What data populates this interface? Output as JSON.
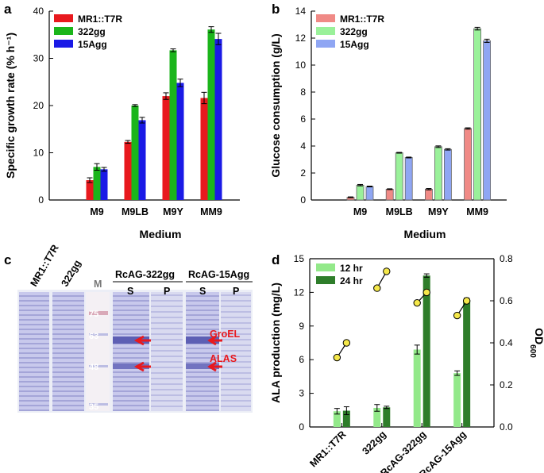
{
  "panels": {
    "a": "a",
    "b": "b",
    "c": "c",
    "d": "d"
  },
  "chart_data": [
    {
      "id": "a",
      "type": "bar",
      "ylabel": "Specific growth rate (% h⁻¹)",
      "xlabel": "Medium",
      "ylim": [
        0,
        40
      ],
      "yticks": [
        0,
        10,
        20,
        30,
        40
      ],
      "categories": [
        "M9",
        "M9LB",
        "M9Y",
        "MM9"
      ],
      "series": [
        {
          "name": "MR1::T7R",
          "color": "#e8191e",
          "values": [
            4.2,
            12.3,
            22.0,
            21.6
          ],
          "errors": [
            0.5,
            0.3,
            0.7,
            1.2
          ]
        },
        {
          "name": "322gg",
          "color": "#1bb51b",
          "values": [
            7.0,
            20.0,
            31.7,
            36.1
          ],
          "errors": [
            0.7,
            0.2,
            0.3,
            0.6
          ]
        },
        {
          "name": "15Agg",
          "color": "#1a1ae6",
          "values": [
            6.5,
            16.9,
            24.8,
            34.1
          ],
          "errors": [
            0.4,
            0.6,
            0.8,
            1.2
          ]
        }
      ]
    },
    {
      "id": "b",
      "type": "bar",
      "ylabel": "Glucose consumption (g/L)",
      "xlabel": "Medium",
      "ylim": [
        0,
        14
      ],
      "yticks": [
        0,
        2,
        4,
        6,
        8,
        10,
        12,
        14
      ],
      "categories": [
        "M9",
        "M9LB",
        "M9Y",
        "MM9"
      ],
      "series": [
        {
          "name": "MR1::T7R",
          "color": "#f08a86",
          "values": [
            0.2,
            0.8,
            0.8,
            5.3
          ],
          "errors": [
            0.03,
            0.03,
            0.05,
            0.05
          ]
        },
        {
          "name": "322gg",
          "color": "#9af19a",
          "values": [
            1.1,
            3.5,
            3.95,
            12.7
          ],
          "errors": [
            0.05,
            0.03,
            0.06,
            0.1
          ]
        },
        {
          "name": "15Agg",
          "color": "#8fa6f3",
          "values": [
            1.0,
            3.15,
            3.75,
            11.8
          ],
          "errors": [
            0.03,
            0.03,
            0.05,
            0.12
          ]
        }
      ]
    },
    {
      "id": "d",
      "type": "bar",
      "ylabel": "ALA production (mg/L)",
      "y2label": "OD",
      "y2label_sub": "600",
      "ylim": [
        0,
        15
      ],
      "yticks": [
        0,
        3,
        6,
        9,
        12,
        15
      ],
      "y2lim": [
        0.0,
        0.8
      ],
      "y2ticks": [
        "0.0",
        "0.2",
        "0.4",
        "0.6",
        "0.8"
      ],
      "categories": [
        "MR1::T7R",
        "322gg",
        "RcAG-322gg",
        "RcAG-15Agg"
      ],
      "series": [
        {
          "name": "12 hr",
          "color": "#93e98a",
          "values": [
            1.4,
            1.7,
            6.9,
            4.8
          ],
          "errors": [
            0.25,
            0.3,
            0.4,
            0.2
          ]
        },
        {
          "name": "24 hr",
          "color": "#2e7d2a",
          "values": [
            1.45,
            1.75,
            13.5,
            11.3
          ],
          "errors": [
            0.35,
            0.1,
            0.15,
            0.2
          ]
        }
      ],
      "od600": [
        [
          0.33,
          0.4
        ],
        [
          0.66,
          0.74
        ],
        [
          0.59,
          0.64
        ],
        [
          0.53,
          0.6
        ]
      ]
    }
  ],
  "gel": {
    "lanes": [
      "MR1::T7R",
      "322gg"
    ],
    "marker_label": "M",
    "groups": [
      {
        "name": "RcAG-322gg",
        "sub": [
          "S",
          "P"
        ]
      },
      {
        "name": "RcAG-15Agg",
        "sub": [
          "S",
          "P"
        ]
      }
    ],
    "markers": [
      "75",
      "63",
      "48",
      "35"
    ],
    "annotations": [
      "GroEL",
      "ALAS"
    ]
  }
}
